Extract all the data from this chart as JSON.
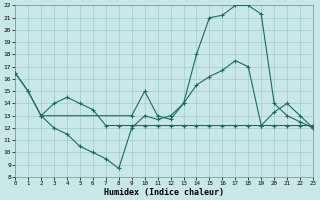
{
  "xlabel": "Humidex (Indice chaleur)",
  "xlim": [
    0,
    23
  ],
  "ylim": [
    8,
    22
  ],
  "xticks": [
    0,
    1,
    2,
    3,
    4,
    5,
    6,
    7,
    8,
    9,
    10,
    11,
    12,
    13,
    14,
    15,
    16,
    17,
    18,
    19,
    20,
    21,
    22,
    23
  ],
  "yticks": [
    8,
    9,
    10,
    11,
    12,
    13,
    14,
    15,
    16,
    17,
    18,
    19,
    20,
    21,
    22
  ],
  "background_color": "#c8e8e8",
  "line_color": "#1a6b60",
  "grid_color": "#a0ccc8",
  "line1_x": [
    0,
    1,
    2,
    3,
    4,
    5,
    6,
    7,
    8,
    9,
    10,
    11,
    12,
    13,
    14,
    15,
    16,
    17,
    18,
    19,
    20,
    21,
    22,
    23
  ],
  "line1_y": [
    16.5,
    15,
    13,
    12,
    11.5,
    10.5,
    10,
    9.5,
    8.7,
    12,
    13,
    12.7,
    13,
    14,
    18,
    21,
    21.2,
    22,
    22,
    21.3,
    14,
    13,
    12.5,
    12
  ],
  "line2_x": [
    0,
    1,
    2,
    3,
    4,
    5,
    6,
    7,
    8,
    9,
    10,
    11,
    12,
    13,
    14,
    15,
    16,
    17,
    18,
    19,
    20,
    21,
    22,
    23
  ],
  "line2_y": [
    16.5,
    15,
    13,
    14,
    14.5,
    14,
    13.5,
    12.2,
    12.2,
    12.2,
    12.2,
    12.2,
    12.2,
    12.2,
    12.2,
    12.2,
    12.2,
    12.2,
    12.2,
    12.2,
    12.2,
    12.2,
    12.2,
    12.2
  ],
  "line3_x": [
    2,
    9,
    10,
    11,
    12,
    13,
    14,
    15,
    16,
    17,
    18,
    19,
    20,
    21,
    22,
    23
  ],
  "line3_y": [
    13,
    13,
    15,
    13,
    12.7,
    14,
    15.5,
    16.2,
    16.7,
    17.5,
    17,
    12.2,
    13.3,
    14,
    13,
    12
  ]
}
